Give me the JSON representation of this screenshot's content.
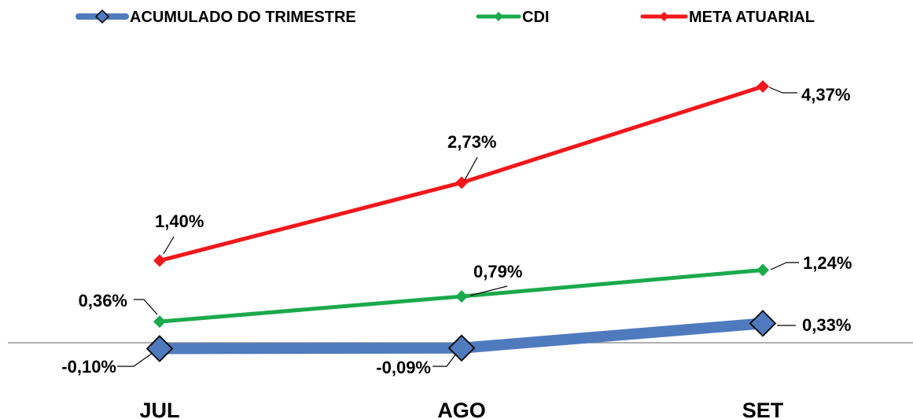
{
  "chart_data": {
    "type": "line",
    "title": "",
    "xlabel": "",
    "ylabel": "",
    "categories": [
      "JUL",
      "AGO",
      "SET"
    ],
    "ylim": [
      -0.6,
      5.0
    ],
    "grid": false,
    "legend_position": "top",
    "series": [
      {
        "name": "ACUMULADO DO TRIMESTRE",
        "values": [
          -0.1,
          -0.09,
          0.33
        ],
        "labels": [
          "-0,10%",
          "-0,09%",
          "0,33%"
        ],
        "color": "#4F7BBE"
      },
      {
        "name": "CDI",
        "values": [
          0.36,
          0.79,
          1.24
        ],
        "labels": [
          "0,36%",
          "0,79%",
          "1,24%"
        ],
        "color": "#1BA94C"
      },
      {
        "name": "META ATUARIAL",
        "values": [
          1.4,
          2.73,
          4.37
        ],
        "labels": [
          "1,40%",
          "2,73%",
          "4,37%"
        ],
        "color": "#F2171B"
      }
    ]
  }
}
